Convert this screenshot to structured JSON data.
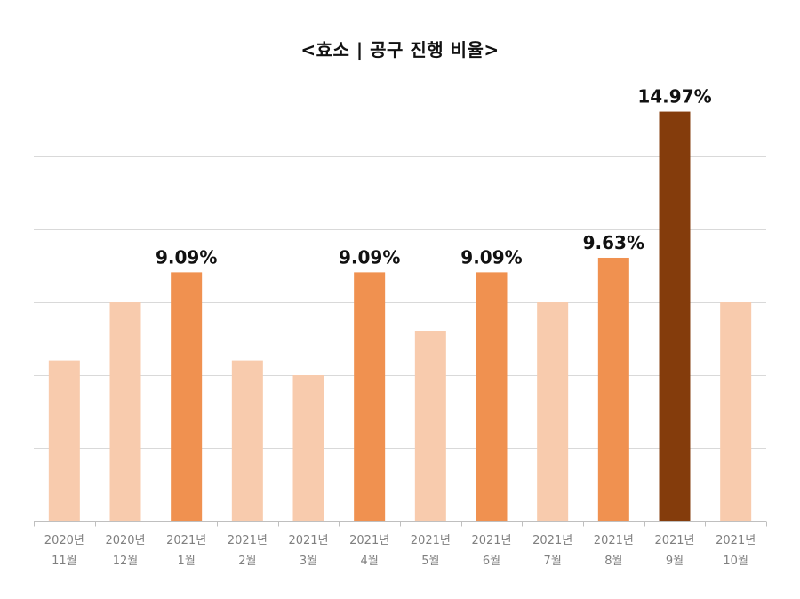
{
  "chart_data": {
    "type": "bar",
    "title": "<효소 | 공구 진행 비율>",
    "categories": [
      [
        "2020년",
        "11월"
      ],
      [
        "2020년",
        "12월"
      ],
      [
        "2021년",
        "1월"
      ],
      [
        "2021년",
        "2월"
      ],
      [
        "2021년",
        "3월"
      ],
      [
        "2021년",
        "4월"
      ],
      [
        "2021년",
        "5월"
      ],
      [
        "2021년",
        "6월"
      ],
      [
        "2021년",
        "7월"
      ],
      [
        "2021년",
        "8월"
      ],
      [
        "2021년",
        "9월"
      ],
      [
        "2021년",
        "10월"
      ]
    ],
    "values": [
      4.4,
      6.0,
      6.82,
      4.4,
      4.0,
      6.82,
      5.2,
      6.82,
      6.0,
      7.22,
      11.23,
      6.0
    ],
    "data_labels": [
      "",
      "",
      "9.09%",
      "",
      "",
      "9.09%",
      "",
      "9.09%",
      "",
      "9.63%",
      "14.97%",
      ""
    ],
    "ylim": [
      0,
      12
    ],
    "y_gridlines": [
      0,
      2,
      4,
      6,
      8,
      10,
      12
    ],
    "grid": true,
    "colors": {
      "light": "#f8cbad",
      "medium": "#f09150",
      "dark": "#843c0c"
    },
    "bar_color_keys": [
      "light",
      "light",
      "medium",
      "light",
      "light",
      "medium",
      "light",
      "medium",
      "light",
      "medium",
      "dark",
      "light"
    ]
  }
}
